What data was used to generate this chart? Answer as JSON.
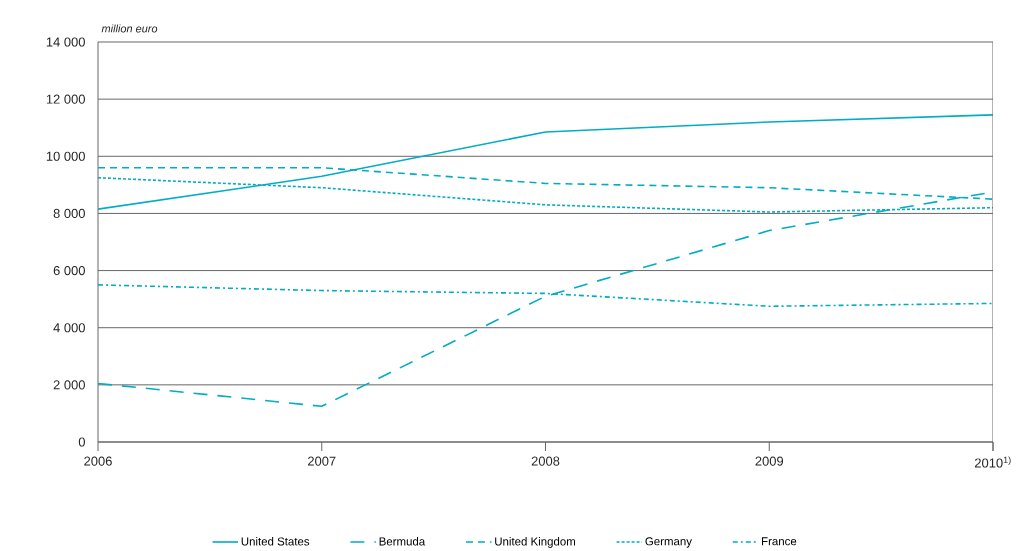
{
  "chart_data": {
    "type": "line",
    "ylabel": "million euro",
    "categories": [
      "2006",
      "2007",
      "2008",
      "2009",
      "2010$^{1)}$"
    ],
    "series": [
      {
        "name": "United States",
        "color": "#00adc4",
        "line_style": "solid",
        "values": [
          8150,
          9300,
          10850,
          11200,
          11450
        ]
      },
      {
        "name": "Bermuda",
        "color": "#00adc4",
        "line_style": "long dashed",
        "values": [
          2050,
          1250,
          5100,
          7400,
          8750
        ]
      },
      {
        "name": "United Kingdom",
        "color": "#00adc4",
        "line_style": "dashed",
        "values": [
          9600,
          9600,
          9050,
          8900,
          8500
        ]
      },
      {
        "name": "Germany",
        "color": "#00adc4",
        "line_style": "dotted",
        "values": [
          9250,
          8900,
          8300,
          8050,
          8200
        ]
      },
      {
        "name": "France",
        "color": "#00adc4",
        "line_style": "dashdot",
        "values": [
          5500,
          5300,
          5200,
          4750,
          4850
        ]
      }
    ],
    "ylim": [
      0,
      14000
    ],
    "yticks": [
      0,
      {
        "value": 2000,
        "label": "2 000"
      },
      {
        "value": 4000,
        "label": "4 000"
      },
      {
        "value": 6000,
        "label": "6 000"
      },
      {
        "value": 8000,
        "label": "8 000"
      },
      {
        "value": 10000,
        "label": "10 000"
      },
      {
        "value": 12000,
        "label": "12 000"
      },
      {
        "value": 14000,
        "label": "14 000"
      }
    ],
    "grid": "y",
    "legend": "bottom"
  }
}
